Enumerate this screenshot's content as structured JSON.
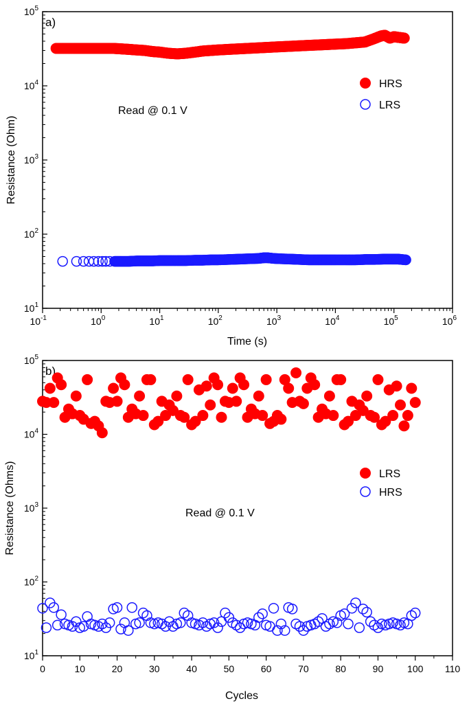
{
  "colors": {
    "filled": "#ff0000",
    "open": "#1a1aff",
    "axis": "#000000"
  },
  "chart_data": [
    {
      "type": "scatter",
      "panel_label": "a)",
      "xlabel": "Time (s)",
      "ylabel": "Resistance (Ohm)",
      "xscale": "log",
      "yscale": "log",
      "xlim": [
        0.1,
        1000000
      ],
      "ylim": [
        10,
        100000
      ],
      "xticks": [
        {
          "b": "10",
          "e": "-1",
          "v": 0.1
        },
        {
          "b": "10",
          "e": "0",
          "v": 1
        },
        {
          "b": "10",
          "e": "1",
          "v": 10
        },
        {
          "b": "10",
          "e": "2",
          "v": 100
        },
        {
          "b": "10",
          "e": "3",
          "v": 1000
        },
        {
          "b": "10",
          "e": "4",
          "v": 10000
        },
        {
          "b": "10",
          "e": "5",
          "v": 100000
        },
        {
          "b": "10",
          "e": "6",
          "v": 1000000
        }
      ],
      "yticks": [
        {
          "b": "10",
          "e": "1",
          "v": 10
        },
        {
          "b": "10",
          "e": "2",
          "v": 100
        },
        {
          "b": "10",
          "e": "3",
          "v": 1000
        },
        {
          "b": "10",
          "e": "4",
          "v": 10000
        },
        {
          "b": "10",
          "e": "5",
          "v": 100000
        }
      ],
      "annotation": "Read @ 0.1 V",
      "legend_position": "right",
      "grid": false,
      "series": [
        {
          "name": "HRS",
          "marker": "filled-circle",
          "x": [
            0.17,
            0.35,
            0.5,
            0.7,
            0.9,
            1.2,
            1.6,
            2.2,
            3,
            4,
            5.5,
            7.5,
            10,
            14,
            20,
            28,
            40,
            55,
            75,
            100,
            150,
            220,
            320,
            480,
            700,
            1000,
            1500,
            2200,
            3200,
            4800,
            7000,
            10000,
            15000,
            22000,
            32000,
            45000,
            60000,
            70000,
            85000,
            100000,
            120000,
            150000
          ],
          "y": [
            32000,
            32000,
            32000,
            32000,
            32000,
            32000,
            32000,
            31500,
            31000,
            30500,
            30000,
            29000,
            28500,
            27500,
            27000,
            27500,
            28500,
            29500,
            30000,
            30500,
            31000,
            31500,
            32000,
            32500,
            33000,
            33500,
            34000,
            34500,
            35000,
            35500,
            36000,
            36500,
            37000,
            38000,
            39000,
            43000,
            47000,
            48000,
            44000,
            46000,
            45000,
            44000
          ]
        },
        {
          "name": "LRS",
          "marker": "open-circle",
          "x": [
            0.22,
            0.38,
            0.5,
            0.62,
            0.75,
            0.9,
            1.05,
            1.2,
            1.4,
            1.7,
            2.2,
            3,
            4,
            5.5,
            7.5,
            10,
            14,
            20,
            28,
            40,
            55,
            75,
            100,
            150,
            220,
            320,
            480,
            600,
            700,
            900,
            1200,
            1800,
            2500,
            3500,
            5000,
            7000,
            10000,
            15000,
            22000,
            32000,
            45000,
            65000,
            90000,
            120000,
            160000
          ],
          "y": [
            43,
            43,
            43,
            43,
            43,
            43,
            43,
            43,
            43,
            43,
            43,
            43,
            43.5,
            43.5,
            43.5,
            44,
            44,
            44,
            44,
            44.5,
            44.5,
            45,
            45,
            45.5,
            46,
            46.5,
            47,
            48,
            48,
            47,
            46.5,
            46,
            45.5,
            45,
            45,
            45,
            45,
            45,
            45,
            45.5,
            45.5,
            46,
            46,
            46,
            45
          ]
        }
      ]
    },
    {
      "type": "scatter",
      "panel_label": "b)",
      "xlabel": "Cycles",
      "ylabel": "Resistance (Ohms)",
      "xscale": "linear",
      "yscale": "log",
      "xlim": [
        0,
        110
      ],
      "ylim": [
        10,
        100000
      ],
      "xticks": [
        0,
        10,
        20,
        30,
        40,
        50,
        60,
        70,
        80,
        90,
        100,
        110
      ],
      "yticks": [
        {
          "b": "10",
          "e": "1",
          "v": 10
        },
        {
          "b": "10",
          "e": "2",
          "v": 100
        },
        {
          "b": "10",
          "e": "3",
          "v": 1000
        },
        {
          "b": "10",
          "e": "4",
          "v": 10000
        },
        {
          "b": "10",
          "e": "5",
          "v": 100000
        }
      ],
      "annotation": "Read @ 0.1 V",
      "legend_position": "right",
      "grid": false,
      "series": [
        {
          "name": "LRS",
          "marker": "filled-circle",
          "y": [
            28000,
            27000,
            42000,
            27000,
            58000,
            47000,
            17000,
            22000,
            19000,
            33000,
            18000,
            16000,
            55000,
            14000,
            15000,
            13000,
            10500,
            28000,
            27000,
            42000,
            28000,
            58000,
            47000,
            17000,
            22000,
            19000,
            33000,
            18000,
            55000,
            55000,
            13500,
            15000,
            28000,
            18000,
            25000,
            21000,
            33000,
            18000,
            17000,
            55000,
            13500,
            15000,
            40000,
            18000,
            45000,
            25000,
            58000,
            47000,
            17000,
            28000,
            27000,
            42000,
            28000,
            58000,
            47000,
            17000,
            22000,
            19000,
            33000,
            18000,
            55000,
            14000,
            15000,
            18000,
            16000,
            55000,
            42000,
            27000,
            68000,
            28000,
            26000,
            42000,
            58000,
            47000,
            17000,
            22000,
            19000,
            33000,
            18000,
            55000,
            55000,
            13500,
            15000,
            28000,
            18000,
            25000,
            21000,
            33000,
            18000,
            17000,
            55000,
            13500,
            15000,
            40000,
            18000,
            45000,
            25000,
            13000,
            18000,
            42000,
            27000
          ]
        },
        {
          "name": "HRS",
          "marker": "open-circle",
          "y": [
            44,
            24,
            52,
            45,
            26,
            36,
            27,
            26,
            25,
            29,
            24,
            25,
            34,
            27,
            26,
            25,
            27,
            24,
            28,
            43,
            45,
            23,
            28,
            22,
            45,
            27,
            28,
            38,
            35,
            28,
            27,
            28,
            27,
            25,
            29,
            25,
            27,
            28,
            38,
            35,
            28,
            27,
            26,
            28,
            25,
            27,
            28,
            24,
            29,
            38,
            33,
            28,
            26,
            24,
            27,
            28,
            27,
            26,
            33,
            37,
            26,
            25,
            44,
            22,
            27,
            22,
            45,
            43,
            27,
            25,
            22,
            25,
            26,
            27,
            29,
            32,
            25,
            27,
            29,
            28,
            35,
            37,
            27,
            44,
            52,
            24,
            43,
            39,
            29,
            26,
            24,
            27,
            26,
            27,
            28,
            27,
            26,
            28,
            27,
            35,
            38
          ]
        }
      ]
    }
  ]
}
